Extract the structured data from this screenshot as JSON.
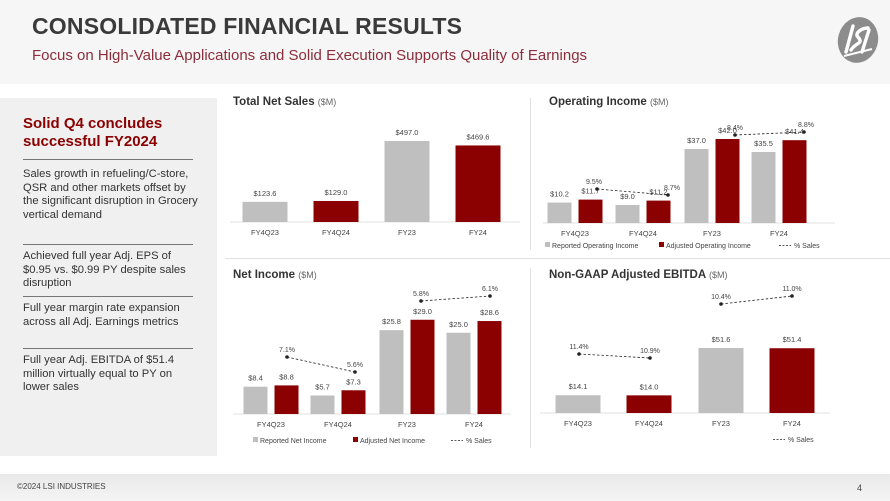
{
  "header": {
    "title": "CONSOLIDATED FINANCIAL RESULTS",
    "subtitle": "Focus on High-Value Applications and Solid Execution Supports Quality of Earnings",
    "logo_icon": "lsi-logo-icon"
  },
  "sidebar": {
    "heading": "Solid Q4 concludes successful FY2024",
    "items": [
      "Sales growth in refueling/C-store, QSR and other markets offset by the significant disruption in Grocery vertical demand",
      "Achieved full year Adj. EPS of $0.95 vs. $0.99 PY despite sales disruption",
      "Full year margin rate expansion across all Adj. Earnings metrics",
      "Full year Adj. EBITDA of $51.4 million virtually equal to PY on lower sales"
    ]
  },
  "panels": {
    "sales": {
      "title": "Total Net Sales",
      "unit": "($M)"
    },
    "opinc": {
      "title": "Operating Income",
      "unit": "($M)"
    },
    "netinc": {
      "title": "Net Income",
      "unit": "($M)"
    },
    "ebitda": {
      "title": "Non-GAAP Adjusted EBITDA",
      "unit": "($M)"
    }
  },
  "colors": {
    "reported": "#bfbfbf",
    "adjusted": "#8b0000",
    "line": "#222222",
    "title_red": "#8b0000",
    "subtitle": "#8b2d3a"
  },
  "footer": {
    "copyright": "©2024 LSI INDUSTRIES",
    "page": "4"
  },
  "chart_data": [
    {
      "type": "bar",
      "title": "Total Net Sales ($M)",
      "categories": [
        "FY4Q23",
        "FY4Q24",
        "FY23",
        "FY24"
      ],
      "values": [
        123.6,
        129.0,
        497.0,
        469.6
      ],
      "labels": [
        "$123.6",
        "$129.0",
        "$497.0",
        "$469.6"
      ],
      "bar_colors": [
        "#bfbfbf",
        "#8b0000",
        "#bfbfbf",
        "#8b0000"
      ],
      "xlabel": "",
      "ylabel": "",
      "grid": false
    },
    {
      "type": "bar",
      "title": "Operating Income ($M)",
      "categories": [
        "FY4Q23",
        "FY4Q24",
        "FY23",
        "FY24"
      ],
      "series": [
        {
          "name": "Reported Operating Income",
          "values": [
            10.2,
            9.0,
            37.0,
            35.5
          ],
          "labels": [
            "$10.2",
            "$9.0",
            "$37.0",
            "$35.5"
          ]
        },
        {
          "name": "Adjusted Operating Income",
          "values": [
            11.7,
            11.2,
            42.0,
            41.4
          ],
          "labels": [
            "$11.7",
            "$11.2",
            "$42.0",
            "$41.4"
          ]
        },
        {
          "name": "% Sales",
          "type": "line",
          "values": [
            9.5,
            8.7,
            8.4,
            8.8
          ],
          "labels": [
            "9.5%",
            "8.7%",
            "8.4%",
            "8.8%"
          ]
        }
      ],
      "legend": [
        "Reported Operating Income",
        "Adjusted Operating Income",
        "% Sales"
      ],
      "legend_position": "bottom"
    },
    {
      "type": "bar",
      "title": "Net Income ($M)",
      "categories": [
        "FY4Q23",
        "FY4Q24",
        "FY23",
        "FY24"
      ],
      "series": [
        {
          "name": "Reported Net Income",
          "values": [
            8.4,
            5.7,
            25.8,
            25.0
          ],
          "labels": [
            "$8.4",
            "$5.7",
            "$25.8",
            "$25.0"
          ]
        },
        {
          "name": "Adjusted Net Income",
          "values": [
            8.8,
            7.3,
            29.0,
            28.6
          ],
          "labels": [
            "$8.8",
            "$7.3",
            "$29.0",
            "$28.6"
          ]
        },
        {
          "name": "% Sales",
          "type": "line",
          "values": [
            7.1,
            5.6,
            5.8,
            6.1
          ],
          "labels": [
            "7.1%",
            "5.6%",
            "5.8%",
            "6.1%"
          ]
        }
      ],
      "legend": [
        "Reported Net Income",
        "Adjusted Net Income",
        "% Sales"
      ],
      "legend_position": "bottom"
    },
    {
      "type": "bar",
      "title": "Non-GAAP Adjusted EBITDA ($M)",
      "categories": [
        "FY4Q23",
        "FY4Q24",
        "FY23",
        "FY24"
      ],
      "values": [
        14.1,
        14.0,
        51.6,
        51.4
      ],
      "labels": [
        "$14.1",
        "$14.0",
        "$51.6",
        "$51.4"
      ],
      "bar_colors": [
        "#bfbfbf",
        "#8b0000",
        "#bfbfbf",
        "#8b0000"
      ],
      "series": [
        {
          "name": "% Sales",
          "type": "line",
          "values": [
            11.4,
            10.9,
            10.4,
            11.0
          ],
          "labels": [
            "11.4%",
            "10.9%",
            "10.4%",
            "11.0%"
          ]
        }
      ],
      "legend": [
        "% Sales"
      ],
      "legend_position": "bottom-right"
    }
  ]
}
